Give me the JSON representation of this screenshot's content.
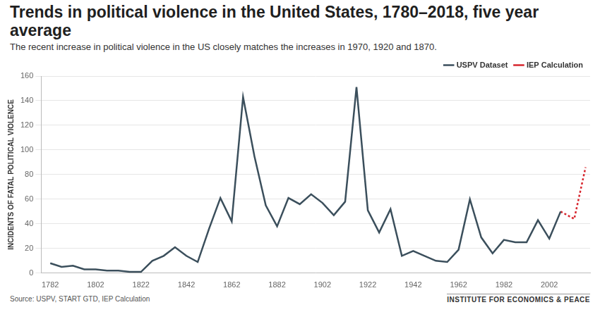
{
  "chart_data": {
    "type": "line",
    "title": "Trends in political violence in the United States, 1780–2018, five year average",
    "subtitle": "The recent increase in political violence in the US closely matches the increases in 1970, 1920 and 1870.",
    "y_label": "INCIDENTS OF FATAL POLITICAL VIOLENCE",
    "source": "Source: USPV, START GTD, IEP Calculation",
    "credit": "INSTITUTE FOR ECONOMICS & PEACE",
    "series": [
      {
        "name": "USPV Dataset",
        "color": "#3b4f5c",
        "line_style": "solid",
        "x": [
          1782,
          1787,
          1792,
          1797,
          1802,
          1807,
          1812,
          1817,
          1822,
          1827,
          1832,
          1837,
          1842,
          1847,
          1852,
          1857,
          1862,
          1867,
          1872,
          1877,
          1882,
          1887,
          1892,
          1897,
          1902,
          1907,
          1912,
          1917,
          1922,
          1927,
          1932,
          1937,
          1942,
          1947,
          1952,
          1957,
          1962,
          1967,
          1972,
          1977,
          1982,
          1987,
          1992,
          1997,
          2002,
          2007
        ],
        "values": [
          8,
          5,
          6,
          3,
          3,
          2,
          2,
          1,
          1,
          10,
          14,
          21,
          14,
          9,
          36,
          61,
          42,
          143,
          95,
          55,
          38,
          61,
          56,
          64,
          57,
          47,
          58,
          151,
          51,
          33,
          52,
          14,
          18,
          14,
          10,
          9,
          19,
          60,
          29,
          16,
          27,
          25,
          25,
          43,
          28,
          50
        ]
      },
      {
        "name": "IEP Calculation",
        "color": "#d7262e",
        "line_style": "dotted",
        "x": [
          2007,
          2013,
          2018
        ],
        "values": [
          50,
          44,
          86
        ]
      }
    ],
    "xlim": [
      1778,
      2020
    ],
    "xticks": [
      1782,
      1802,
      1822,
      1842,
      1862,
      1882,
      1902,
      1922,
      1942,
      1962,
      1982,
      2002
    ],
    "ylim": [
      0,
      160
    ],
    "yticks": [
      0,
      20,
      40,
      60,
      80,
      100,
      120,
      140,
      160
    ],
    "grid": "y",
    "legend": "top-right"
  }
}
